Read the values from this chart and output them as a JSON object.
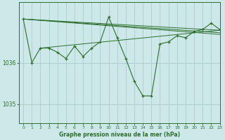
{
  "title": "Graphe pression niveau de la mer (hPa)",
  "bg_color": "#cce8e8",
  "grid_color": "#aacccc",
  "line_color": "#2d6e2d",
  "xlim": [
    -0.5,
    23
  ],
  "ylim": [
    1034.55,
    1037.45
  ],
  "yticks": [
    1035,
    1036
  ],
  "xticks": [
    0,
    1,
    2,
    3,
    4,
    5,
    6,
    7,
    8,
    9,
    10,
    11,
    12,
    13,
    14,
    15,
    16,
    17,
    18,
    19,
    20,
    21,
    22,
    23
  ],
  "main_series_x": [
    0,
    1,
    2,
    3,
    4,
    5,
    6,
    7,
    8,
    9,
    10,
    11,
    12,
    13,
    14,
    15,
    16,
    17,
    18,
    19,
    20,
    21,
    22,
    23
  ],
  "main_series_y": [
    1037.05,
    1036.0,
    1036.35,
    1036.35,
    1036.25,
    1036.1,
    1036.4,
    1036.15,
    1036.35,
    1036.5,
    1037.1,
    1036.6,
    1036.1,
    1035.55,
    1035.2,
    1035.2,
    1036.45,
    1036.5,
    1036.65,
    1036.6,
    1036.75,
    1036.8,
    1036.95,
    1036.8
  ],
  "flat_lines": [
    {
      "x": [
        0,
        23
      ],
      "y": [
        1037.05,
        1036.78
      ]
    },
    {
      "x": [
        0,
        23
      ],
      "y": [
        1037.05,
        1036.72
      ]
    },
    {
      "x": [
        0,
        23
      ],
      "y": [
        1037.05,
        1036.68
      ]
    },
    {
      "x": [
        2,
        23
      ],
      "y": [
        1036.35,
        1036.78
      ]
    }
  ]
}
